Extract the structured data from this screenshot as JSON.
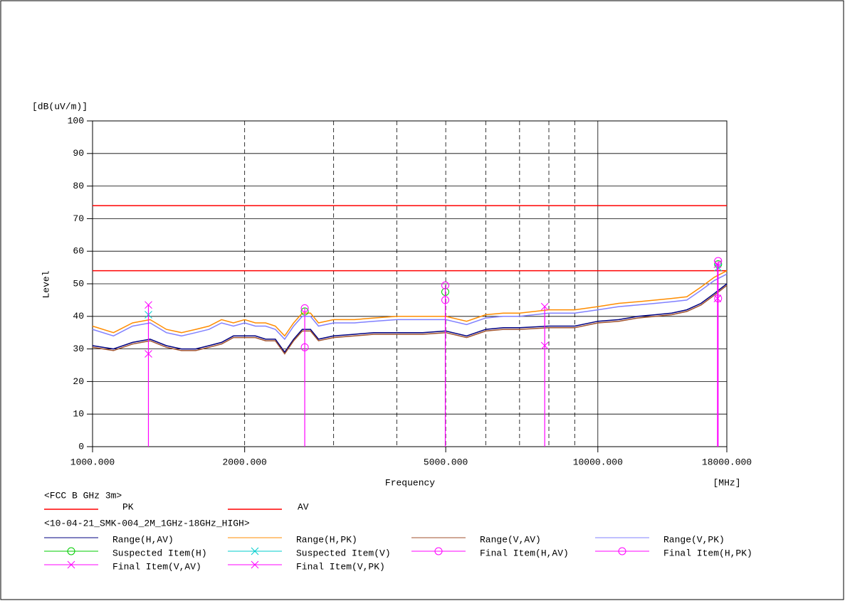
{
  "chart_data": {
    "type": "line",
    "y_unit": "[dB(uV/m)]",
    "ylabel": "Level",
    "xlabel": "Frequency",
    "x_unit": "[MHz]",
    "log_x": true,
    "grid": true,
    "xlim": [
      1000,
      18000
    ],
    "ylim": [
      0,
      100
    ],
    "yticks": [
      0,
      10,
      20,
      30,
      40,
      50,
      60,
      70,
      80,
      90,
      100
    ],
    "xticks": [
      {
        "value": 1000,
        "label": "1000.000"
      },
      {
        "value": 2000,
        "label": "2000.000"
      },
      {
        "value": 5000,
        "label": "5000.000"
      },
      {
        "value": 10000,
        "label": "10000.000"
      },
      {
        "value": 18000,
        "label": "18000.000"
      }
    ],
    "x_minor_gridlines": [
      3000,
      4000,
      6000,
      7000,
      8000,
      9000
    ],
    "limit_group_title": "<FCC B GHz 3m>",
    "limits": [
      {
        "name": "PK",
        "color": "#ff0000",
        "value": 74
      },
      {
        "name": "AV",
        "color": "#ff0000",
        "value": 54
      }
    ],
    "series_group_title": "<10-04-21_SMK-004_2M_1GHz-18GHz_HIGH>",
    "x": [
      1000,
      1100,
      1200,
      1300,
      1400,
      1500,
      1600,
      1700,
      1800,
      1900,
      2000,
      2100,
      2200,
      2300,
      2400,
      2500,
      2600,
      2700,
      2800,
      3000,
      3300,
      3600,
      4000,
      4500,
      5000,
      5500,
      6000,
      6500,
      7000,
      8000,
      9000,
      10000,
      11000,
      12000,
      13000,
      14000,
      15000,
      16000,
      17000,
      18000
    ],
    "series": [
      {
        "name": "Range(H,AV)",
        "color": "#000080",
        "marker": "none",
        "values": [
          31,
          30,
          32,
          33,
          31,
          30,
          30,
          31,
          32,
          34,
          34,
          34,
          33,
          33,
          29,
          33,
          36,
          36,
          33,
          34,
          34.5,
          35,
          35,
          35,
          35.5,
          34,
          36,
          36.5,
          36.5,
          37,
          37,
          38.5,
          39,
          40,
          40.5,
          41,
          42,
          44,
          47,
          50
        ]
      },
      {
        "name": "Range(H,PK)",
        "color": "#ff8c00",
        "marker": "none",
        "values": [
          37,
          35,
          38,
          39,
          36,
          35,
          36,
          37,
          39,
          38,
          39,
          38,
          38,
          37,
          34,
          38,
          41,
          41,
          38,
          39,
          39,
          39.5,
          40,
          40,
          40,
          38.5,
          40.5,
          41,
          41,
          42,
          42,
          43,
          44,
          44.5,
          45,
          45.5,
          46,
          49,
          52,
          54
        ]
      },
      {
        "name": "Range(V,AV)",
        "color": "#a0522d",
        "marker": "none",
        "values": [
          30.5,
          29.5,
          31.5,
          32.5,
          30.5,
          29.5,
          29.5,
          30.5,
          31.5,
          33.5,
          33.5,
          33.5,
          32.5,
          32.5,
          28.5,
          32.5,
          35.5,
          35.5,
          32.5,
          33.5,
          34,
          34.5,
          34.5,
          34.5,
          35,
          33.5,
          35.5,
          36,
          36,
          36.5,
          36.5,
          38,
          38.5,
          39.5,
          40,
          40.5,
          41.5,
          43.5,
          46.5,
          49.5
        ]
      },
      {
        "name": "Range(V,PK)",
        "color": "#8080ff",
        "marker": "none",
        "values": [
          36,
          34,
          37,
          38,
          35,
          34,
          35,
          36,
          38,
          37,
          38,
          37,
          37,
          36,
          33,
          37,
          40,
          40,
          37,
          38,
          38,
          38.5,
          39,
          39,
          39,
          37.5,
          39.5,
          40,
          40,
          41,
          41,
          42,
          43,
          43.5,
          44,
          44.5,
          45,
          48,
          51,
          53
        ]
      },
      {
        "name": "Suspected Item(H)",
        "color": "#00cc00",
        "marker": "circle",
        "x": [
          2630,
          4990,
          17300
        ],
        "values": [
          41.5,
          47.5,
          56
        ]
      },
      {
        "name": "Suspected Item(V)",
        "color": "#00cccc",
        "marker": "x",
        "x": [
          1290,
          17300
        ],
        "values": [
          40.5,
          55
        ]
      },
      {
        "name": "Final Item(H,AV)",
        "color": "#ff00ff",
        "marker": "circle",
        "x": [
          2630,
          4990,
          17300
        ],
        "values": [
          30.5,
          45,
          45.5
        ]
      },
      {
        "name": "Final Item(H,PK)",
        "color": "#ff00ff",
        "marker": "circle",
        "stem": true,
        "x": [
          2630,
          4990,
          17300
        ],
        "values": [
          42.5,
          49.5,
          57
        ]
      },
      {
        "name": "Final Item(V,AV)",
        "color": "#ff00ff",
        "marker": "x",
        "x": [
          1290,
          7850,
          17250
        ],
        "values": [
          28.5,
          31,
          45.5
        ]
      },
      {
        "name": "Final Item(V,PK)",
        "color": "#ff00ff",
        "marker": "x",
        "stem": true,
        "x": [
          1290,
          7850,
          17250
        ],
        "values": [
          43.5,
          43,
          56
        ]
      }
    ]
  }
}
